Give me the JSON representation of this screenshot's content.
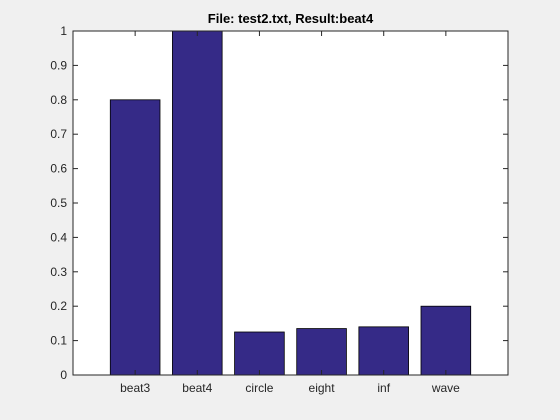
{
  "window": {
    "background": "#f0f0f0"
  },
  "chart_data": {
    "type": "bar",
    "title": "File: test2.txt, Result:beat4",
    "xlabel": "",
    "ylabel": "",
    "categories": [
      "beat3",
      "beat4",
      "circle",
      "eight",
      "inf",
      "wave"
    ],
    "values": [
      0.8,
      1.0,
      0.125,
      0.135,
      0.14,
      0.2
    ],
    "ylim": [
      0,
      1
    ],
    "yticks": [
      0,
      0.1,
      0.2,
      0.3,
      0.4,
      0.5,
      0.6,
      0.7,
      0.8,
      0.9,
      1
    ],
    "ytick_labels": [
      "0",
      "0.1",
      "0.2",
      "0.3",
      "0.4",
      "0.5",
      "0.6",
      "0.7",
      "0.8",
      "0.9",
      "1"
    ],
    "grid": false,
    "legend": "none",
    "bar_color": "#352a87",
    "bar_edge_color": "#000000",
    "axes_background": "#ffffff"
  }
}
